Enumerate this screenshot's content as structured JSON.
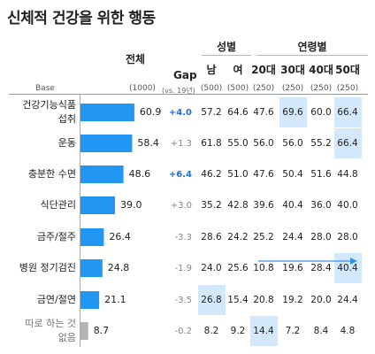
{
  "title": "신체적 건강을 위한 행동",
  "headers": {
    "total": "전체",
    "gap": "Gap",
    "gap_sub": "(vs. 19년)",
    "gender_group": "성별",
    "age_group": "연령별",
    "columns": [
      "남",
      "여",
      "20대",
      "30대",
      "40대",
      "50대"
    ],
    "base_label": "Base",
    "base_total": "(1000)",
    "base_values": [
      "(500)",
      "(500)",
      "(250)",
      "(250)",
      "(250)",
      "(250)"
    ]
  },
  "colors": {
    "bar": "#2196f3",
    "bar_last": "#b3b3b3",
    "gap_positive": "#1e6fd9",
    "gap_negative": "#888888",
    "highlight": "#d4e8fb",
    "arrow": "#3b8fe0"
  },
  "chart_data": {
    "type": "bar",
    "orientation": "horizontal",
    "title": "신체적 건강을 위한 행동",
    "categories": [
      "건강기능식품 섭취",
      "운동",
      "충분한 수면",
      "식단관리",
      "금주/절주",
      "병원 정기검진",
      "금연/절연",
      "따로 하는 것 없음"
    ],
    "values": [
      60.9,
      58.4,
      48.6,
      39.0,
      26.4,
      24.8,
      21.1,
      8.7
    ],
    "gap_vs_2019": [
      "+4.0",
      "+1.3",
      "+6.4",
      "+3.0",
      "-3.3",
      "-1.9",
      "-3.5",
      "-0.2"
    ],
    "gap_bold": [
      true,
      false,
      true,
      false,
      false,
      false,
      false,
      false
    ],
    "table": {
      "columns": [
        "남",
        "여",
        "20대",
        "30대",
        "40대",
        "50대"
      ],
      "rows": [
        [
          57.2,
          64.6,
          47.6,
          69.6,
          60.0,
          66.4
        ],
        [
          61.8,
          55.0,
          56.0,
          56.0,
          55.2,
          66.4
        ],
        [
          46.2,
          51.0,
          47.6,
          50.4,
          51.6,
          44.8
        ],
        [
          35.2,
          42.8,
          39.6,
          40.4,
          36.0,
          40.0
        ],
        [
          28.6,
          24.2,
          25.2,
          24.4,
          28.0,
          28.0
        ],
        [
          24.0,
          25.6,
          10.8,
          19.6,
          28.4,
          40.4
        ],
        [
          26.8,
          15.4,
          20.8,
          19.2,
          20.0,
          24.4
        ],
        [
          8.2,
          9.2,
          14.4,
          7.2,
          8.4,
          4.8
        ]
      ],
      "highlighted": [
        [
          0,
          3
        ],
        [
          0,
          5
        ],
        [
          1,
          5
        ],
        [
          5,
          5
        ],
        [
          6,
          0
        ],
        [
          7,
          2
        ]
      ]
    },
    "trend_arrow_row": 5,
    "xlim": [
      0,
      100
    ]
  }
}
